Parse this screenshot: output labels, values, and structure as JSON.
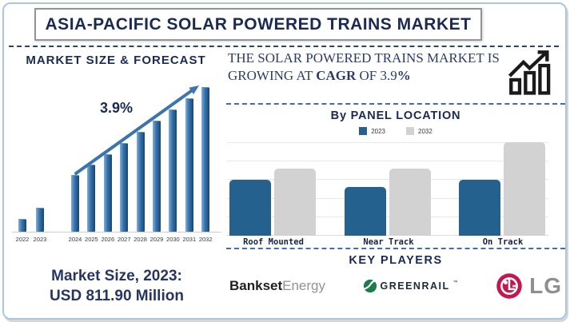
{
  "title": "ASIA-PACIFIC SOLAR POWERED TRAINS MARKET",
  "left": {
    "section_title": "MARKET SIZE & FORECAST",
    "cagr_annotation": "3.9%",
    "market_size_line1": "Market Size, 2023:",
    "market_size_line2": "USD 811.90 Million"
  },
  "right": {
    "headline": {
      "seg1": "THE SOLAR POWERED TRAINS MARKET IS GROWING AT ",
      "bold1": "CAGR",
      "seg2": " OF 3.9",
      "bold2": "%"
    },
    "panel": {
      "heading": "By PANEL LOCATION"
    },
    "key_players": {
      "heading": "KEY PLAYERS",
      "players": [
        {
          "name": "Bankset Energy",
          "part_bold": "Bankset",
          "part_light": " Energy"
        },
        {
          "name": "GREENRAIL",
          "tm": "™"
        },
        {
          "name": "LG"
        }
      ]
    }
  },
  "icons": {
    "growth_icon": "growth-chart-icon",
    "trend_arrow": "trend-arrow-icon",
    "greenrail_icon": "greenrail-leaf-icon",
    "lg_icon": "lg-face-icon"
  },
  "colors": {
    "navy": "#1b2a55",
    "headline_navy": "#2c3c66",
    "bar_blue": "#24618f",
    "bar_gray": "#d2d2d2",
    "left_bar_blue": "#3b77b0",
    "arrow_blue": "#3d74ab",
    "greenrail_green": "#1e7b4b",
    "lg_red": "#c2174f",
    "lg_text_gray": "#8e8f91"
  },
  "chart_data": [
    {
      "type": "bar",
      "title": "MARKET SIZE & FORECAST",
      "categories": [
        "2022",
        "2023",
        "2024",
        "2025",
        "2026",
        "2027",
        "2028",
        "2029",
        "2030",
        "2031",
        "2032"
      ],
      "values": [
        15,
        29,
        70,
        83,
        96,
        110,
        124,
        138,
        152,
        166,
        180
      ],
      "units": "relative bar height (y-axis unlabeled)",
      "annotations": [
        "3.9%"
      ],
      "known_point": {
        "year": "2023",
        "value_usd_million": 811.9
      },
      "xlabel": "",
      "ylabel": "",
      "grid": false,
      "bar_color": "#3b77b0"
    },
    {
      "type": "bar",
      "title": "By PANEL LOCATION",
      "categories": [
        "Roof Mounted",
        "Near Track",
        "On Track"
      ],
      "series": [
        {
          "name": "2023",
          "color": "#24618f",
          "values": [
            60,
            52,
            60
          ]
        },
        {
          "name": "2032",
          "color": "#d2d2d2",
          "values": [
            72,
            72,
            100
          ]
        }
      ],
      "units": "relative (% of tallest bar; y-axis unlabeled)",
      "grid": true,
      "legend_position": "top"
    }
  ]
}
